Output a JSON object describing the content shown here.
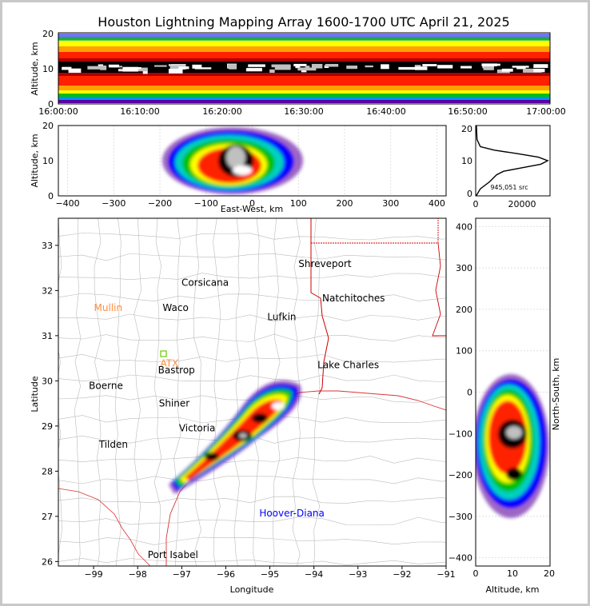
{
  "title": "Houston Lightning Mapping Array 1600-1700 UTC April 21, 2025",
  "colors": {
    "scale": [
      "#5a00a0",
      "#0000ff",
      "#0090ff",
      "#00d0c0",
      "#00c000",
      "#a0e000",
      "#ffff00",
      "#ffa000",
      "#ff2000",
      "#d00000",
      "#000000",
      "#c0c0c0",
      "#ffffff"
    ],
    "state_border": "#cc0000",
    "coast": "#dd3333",
    "county": "#bbbbbb",
    "green_marker": "#66cc00"
  },
  "panels": {
    "time_height": {
      "ylabel": "Altitude, km",
      "ylim": [
        0,
        20
      ],
      "yticks": [
        "0",
        "10",
        "20"
      ],
      "xticks": [
        "16:00:00",
        "16:10:00",
        "16:20:00",
        "16:30:00",
        "16:40:00",
        "16:50:00",
        "17:00:00"
      ]
    },
    "ew_alt": {
      "xlabel": "East-West, km",
      "ylabel": "Altitude, km",
      "xlim": [
        -420,
        420
      ],
      "ylim": [
        0,
        20
      ],
      "xticks": [
        "−400",
        "−300",
        "−200",
        "−100",
        "0",
        "100",
        "200",
        "300",
        "400"
      ],
      "yticks": [
        "0",
        "10",
        "20"
      ]
    },
    "histogram": {
      "xticks": [
        "0",
        "20000"
      ],
      "yticks": [
        "0",
        "10",
        "20"
      ],
      "source_count": "945,051 src"
    },
    "map": {
      "xlabel": "Longitude",
      "ylabel": "Latitude",
      "xlim": [
        -99.8,
        -91
      ],
      "ylim": [
        25.9,
        33.6
      ],
      "xticks": [
        "−99",
        "−98",
        "−97",
        "−96",
        "−95",
        "−94",
        "−93",
        "−92",
        "−91"
      ],
      "yticks": [
        "26",
        "27",
        "28",
        "29",
        "30",
        "31",
        "32",
        "33"
      ],
      "cities": [
        {
          "name": "Shreveport",
          "lon": -93.75,
          "lat": 32.52,
          "color": "#000000"
        },
        {
          "name": "Corsicana",
          "lon": -96.47,
          "lat": 32.1,
          "color": "#000000"
        },
        {
          "name": "Natchitoches",
          "lon": -93.1,
          "lat": 31.76,
          "color": "#000000"
        },
        {
          "name": "Mullin",
          "lon": -98.67,
          "lat": 31.55,
          "color": "#ff8c40"
        },
        {
          "name": "Waco",
          "lon": -97.14,
          "lat": 31.55,
          "color": "#000000"
        },
        {
          "name": "Lufkin",
          "lon": -94.73,
          "lat": 31.34,
          "color": "#000000"
        },
        {
          "name": "Lake Charles",
          "lon": -93.22,
          "lat": 30.28,
          "color": "#000000"
        },
        {
          "name": "ATX",
          "lon": -97.28,
          "lat": 30.32,
          "color": "#ff8c40"
        },
        {
          "name": "Bastrop",
          "lon": -97.12,
          "lat": 30.17,
          "color": "#000000"
        },
        {
          "name": "Boerne",
          "lon": -98.72,
          "lat": 29.82,
          "color": "#000000"
        },
        {
          "name": "Shiner",
          "lon": -97.17,
          "lat": 29.43,
          "color": "#000000"
        },
        {
          "name": "Victoria",
          "lon": -96.65,
          "lat": 28.88,
          "color": "#000000"
        },
        {
          "name": "Tilden",
          "lon": -98.55,
          "lat": 28.52,
          "color": "#000000"
        },
        {
          "name": "Hoover-Diana",
          "lon": -94.5,
          "lat": 27.0,
          "color": "#0000ff"
        },
        {
          "name": "Port Isabel",
          "lon": -97.2,
          "lat": 26.08,
          "color": "#000000"
        }
      ]
    },
    "ns_alt": {
      "xlabel": "Altitude, km",
      "ylabel": "North-South, km",
      "xlim": [
        0,
        20
      ],
      "ylim": [
        -420,
        420
      ],
      "xticks": [
        "0",
        "10",
        "20"
      ],
      "yticks": [
        "−400",
        "−300",
        "−200",
        "−100",
        "0",
        "100",
        "200",
        "300",
        "400"
      ]
    }
  },
  "chart_data": [
    {
      "type": "heatmap",
      "title": "Houston Lightning Mapping Array 1600-1700 UTC April 21, 2025",
      "panel": "time-height",
      "x": [
        "16:00:00",
        "17:00:00"
      ],
      "ylabel": "Altitude, km",
      "ylim": [
        0,
        20
      ],
      "peak_altitude_km": 10
    },
    {
      "type": "heatmap",
      "panel": "east-west altitude",
      "xlabel": "East-West, km",
      "ylabel": "Altitude, km",
      "xlim": [
        -420,
        420
      ],
      "ylim": [
        0,
        20
      ],
      "peak": {
        "x": -30,
        "y": 10
      }
    },
    {
      "type": "line",
      "panel": "altitude histogram",
      "x": [
        200,
        2000,
        6000,
        9000,
        12000,
        20000,
        28000,
        31000,
        27000,
        18000,
        8000,
        2000,
        600,
        300
      ],
      "y": [
        0,
        2,
        4,
        6,
        7,
        8,
        9,
        10,
        11,
        12,
        13,
        14,
        16,
        20
      ],
      "xlim": [
        0,
        32000
      ],
      "ylim": [
        0,
        20
      ],
      "annotation": "945,051 src"
    },
    {
      "type": "scatter",
      "panel": "plan view",
      "xlabel": "Longitude",
      "ylabel": "Latitude",
      "xlim": [
        -99.8,
        -91
      ],
      "ylim": [
        25.9,
        33.6
      ]
    },
    {
      "type": "heatmap",
      "panel": "north-south altitude",
      "xlabel": "Altitude, km",
      "ylabel": "North-South, km",
      "xlim": [
        0,
        20
      ],
      "ylim": [
        -420,
        420
      ],
      "peak": {
        "x": 10,
        "y": -100
      }
    }
  ]
}
